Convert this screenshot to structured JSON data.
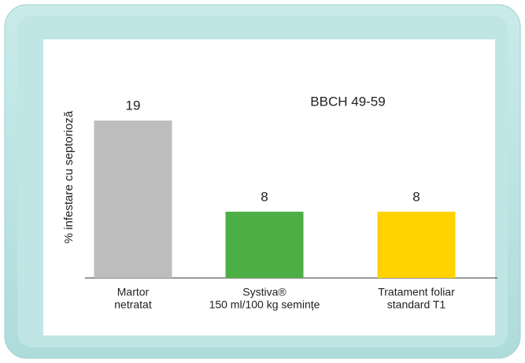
{
  "chart_data": {
    "type": "bar",
    "ylabel": "% infestare cu septorioză",
    "annotation": "BBCH 49-59",
    "categories": [
      [
        "Martor",
        "netratat"
      ],
      [
        "Systiva®",
        "150 ml/100 kg semințe"
      ],
      [
        "Tratament foliar",
        "standard T1"
      ]
    ],
    "values": [
      19,
      8,
      8
    ],
    "colors": [
      "#bdbdbd",
      "#4caf45",
      "#ffd200"
    ],
    "ylim": [
      0,
      20
    ]
  }
}
